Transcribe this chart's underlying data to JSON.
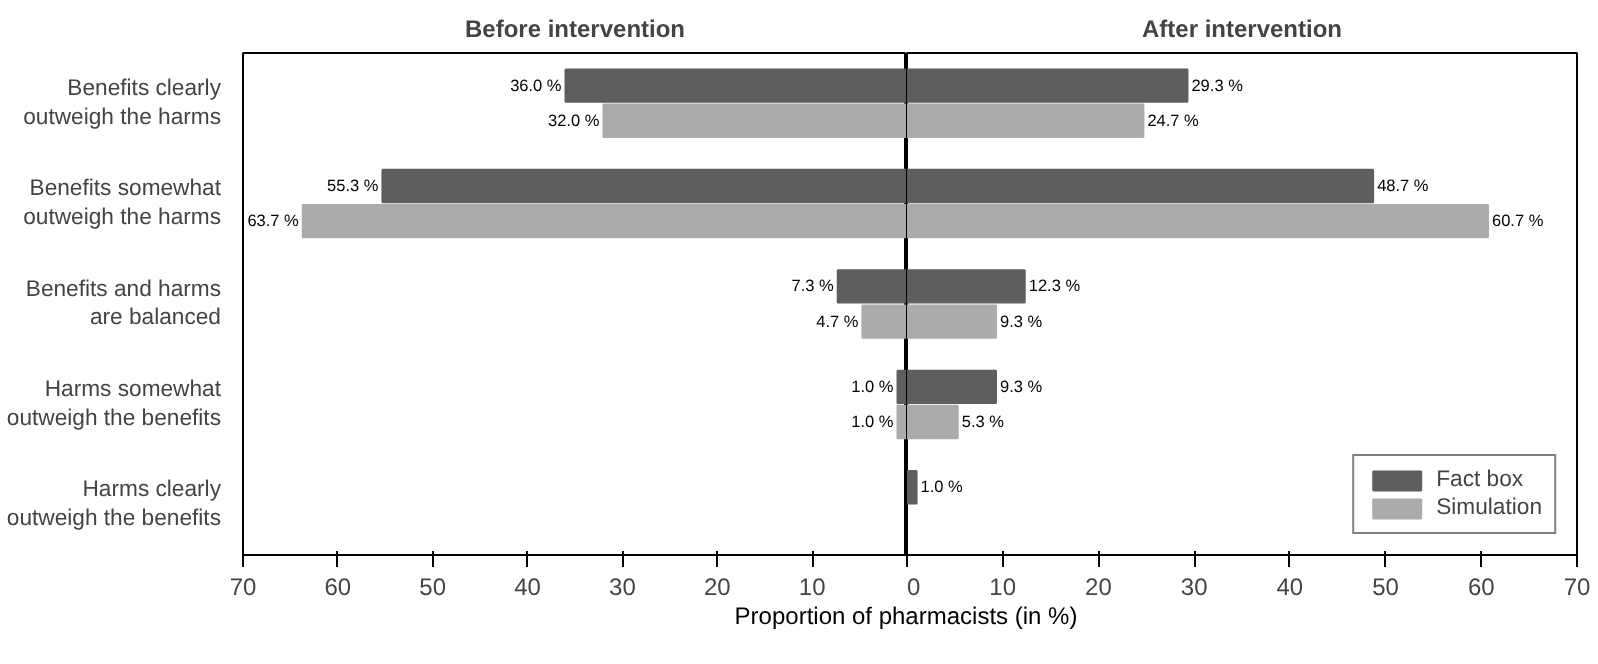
{
  "chart_data": [
    {
      "type": "bar",
      "orientation": "horizontal",
      "title": "Before intervention",
      "xlabel": "Proportion of pharmacists (in %)",
      "categories": [
        "Benefits clearly outweigh the harms",
        "Benefits somewhat outweigh the harms",
        "Benefits and harms are balanced",
        "Harms somewhat outweigh the benefits",
        "Harms clearly outweigh the benefits"
      ],
      "series": [
        {
          "color": "#5e5e5e",
          "values": [
            36.0,
            55.3,
            7.3,
            1.0,
            null
          ],
          "value_labels": [
            "36.0 %",
            "55.3 %",
            "7.3 %",
            "1.0 %",
            null
          ]
        },
        {
          "color": "#ababab",
          "values": [
            32.0,
            63.7,
            4.7,
            1.0,
            null
          ],
          "value_labels": [
            "32.0 %",
            "63.7 %",
            "4.7 %",
            "1.0 %",
            null
          ]
        }
      ],
      "xlim": [
        70,
        0
      ],
      "xticks": [
        70,
        60,
        50,
        40,
        30,
        20,
        10
      ],
      "grid": false
    },
    {
      "type": "bar",
      "orientation": "horizontal",
      "title": "After intervention",
      "categories": [
        null,
        null,
        null,
        null,
        null
      ],
      "series": [
        {
          "name": "Fact box",
          "color": "#5e5e5e",
          "values": [
            29.3,
            48.7,
            12.3,
            9.3,
            1.0
          ],
          "value_labels": [
            "29.3 %",
            "48.7 %",
            "12.3 %",
            "9.3 %",
            "1.0 %"
          ]
        },
        {
          "name": "Simulation",
          "color": "#ababab",
          "values": [
            24.7,
            60.7,
            9.3,
            5.3,
            null
          ],
          "value_labels": [
            "24.7 %",
            "60.7 %",
            "9.3 %",
            "5.3 %",
            null
          ]
        }
      ],
      "xlim": [
        0,
        70
      ],
      "xticks": [
        0,
        10,
        20,
        30,
        40,
        50,
        60,
        70
      ],
      "tick_labels": "x",
      "grid": false,
      "legend": "bottom right"
    }
  ]
}
